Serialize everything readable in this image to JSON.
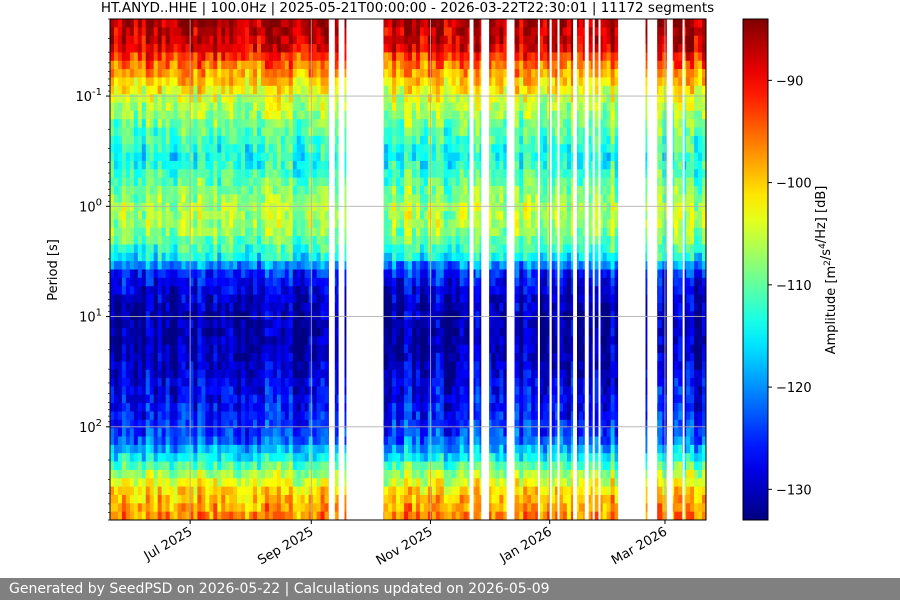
{
  "chart_data": {
    "type": "heatmap",
    "title": "HT.ANYD..HHE | 100.0Hz | 2025-05-21T00:00:00 - 2026-03-22T22:30:01 | 11172 segments",
    "xlabel": "",
    "ylabel": "Period [s]",
    "yscale": "log",
    "ylim_inverted": [
      0.02,
      700
    ],
    "xlim": [
      "2025-05-21",
      "2026-03-22"
    ],
    "x_ticks": [
      {
        "date": "2025-07-01",
        "label": "Jul 2025"
      },
      {
        "date": "2025-09-01",
        "label": "Sep 2025"
      },
      {
        "date": "2025-11-01",
        "label": "Nov 2025"
      },
      {
        "date": "2026-01-01",
        "label": "Jan 2026"
      },
      {
        "date": "2026-03-01",
        "label": "Mar 2026"
      }
    ],
    "y_ticks": [
      {
        "period": 0.1,
        "label": "10^-1"
      },
      {
        "period": 1,
        "label": "10^0"
      },
      {
        "period": 10,
        "label": "10^1"
      },
      {
        "period": 100,
        "label": "10^2"
      }
    ],
    "grid": true,
    "colormap": "jet",
    "colorbar": {
      "label": "Amplitude [m^2/s^4/Hz] [dB]",
      "range": [
        -133,
        -84
      ],
      "ticks": [
        -90,
        -100,
        -110,
        -120,
        -130
      ]
    },
    "data_gaps": [
      [
        "2025-09-10",
        "2025-09-13"
      ],
      [
        "2025-09-15",
        "2025-09-18"
      ],
      [
        "2025-09-19",
        "2025-10-08"
      ],
      [
        "2025-11-21",
        "2025-11-23"
      ],
      [
        "2025-11-27",
        "2025-12-01"
      ],
      [
        "2025-12-10",
        "2025-12-14"
      ],
      [
        "2025-12-26",
        "2025-12-27"
      ],
      [
        "2026-01-01",
        "2026-01-02"
      ],
      [
        "2026-01-05",
        "2026-01-06"
      ],
      [
        "2026-01-13",
        "2026-01-15"
      ],
      [
        "2026-01-19",
        "2026-01-21"
      ],
      [
        "2026-01-23",
        "2026-01-24"
      ],
      [
        "2026-01-26",
        "2026-01-27"
      ],
      [
        "2026-02-05",
        "2026-02-19"
      ],
      [
        "2026-02-20",
        "2026-02-25"
      ],
      [
        "2026-03-02",
        "2026-03-05"
      ],
      [
        "2026-03-10",
        "2026-03-11"
      ]
    ]
  },
  "footer": {
    "text": "Generated by SeedPSD on 2026-05-22 | Calculations updated on 2026-05-09"
  }
}
